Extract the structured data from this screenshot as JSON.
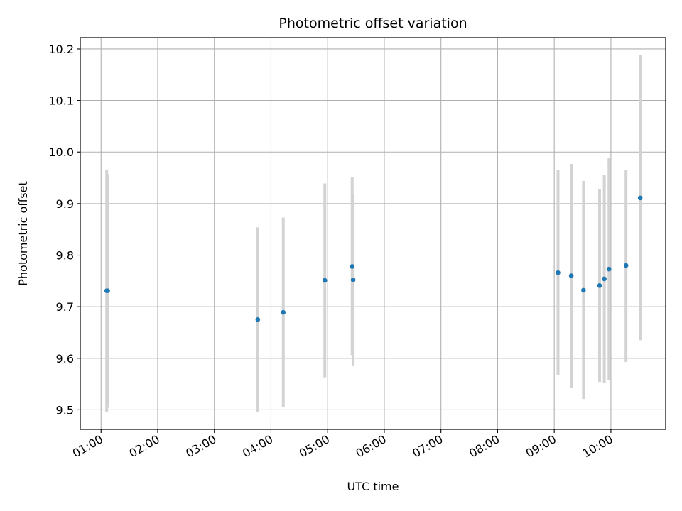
{
  "chart_data": {
    "type": "scatter",
    "title": "Photometric offset variation",
    "xlabel": "UTC time",
    "ylabel": "Photometric offset",
    "x_ticks": [
      "01:00",
      "02:00",
      "03:00",
      "04:00",
      "05:00",
      "06:00",
      "07:00",
      "08:00",
      "09:00",
      "10:00"
    ],
    "y_ticks": [
      "9.5",
      "9.6",
      "9.7",
      "9.8",
      "9.9",
      "10.0",
      "10.1",
      "10.2"
    ],
    "xlim": [
      "00:38",
      "10:58"
    ],
    "ylim": [
      9.462,
      10.222
    ],
    "grid": true,
    "colors": {
      "point": "#1f77b4",
      "errorbar": "#d3d3d3",
      "grid": "#b0b0b0"
    },
    "points": [
      {
        "x": "01:06",
        "y": 9.731,
        "yerr_low": 9.496,
        "yerr_high": 9.966
      },
      {
        "x": "01:07",
        "y": 9.731,
        "yerr_low": 9.504,
        "yerr_high": 9.957
      },
      {
        "x": "03:46",
        "y": 9.675,
        "yerr_low": 9.496,
        "yerr_high": 9.854
      },
      {
        "x": "04:13",
        "y": 9.689,
        "yerr_low": 9.505,
        "yerr_high": 9.873
      },
      {
        "x": "04:57",
        "y": 9.751,
        "yerr_low": 9.563,
        "yerr_high": 9.939
      },
      {
        "x": "05:26",
        "y": 9.778,
        "yerr_low": 9.606,
        "yerr_high": 9.951
      },
      {
        "x": "05:27",
        "y": 9.752,
        "yerr_low": 9.586,
        "yerr_high": 9.918
      },
      {
        "x": "09:04",
        "y": 9.766,
        "yerr_low": 9.567,
        "yerr_high": 9.965
      },
      {
        "x": "09:18",
        "y": 9.76,
        "yerr_low": 9.543,
        "yerr_high": 9.977
      },
      {
        "x": "09:31",
        "y": 9.732,
        "yerr_low": 9.521,
        "yerr_high": 9.944
      },
      {
        "x": "09:48",
        "y": 9.741,
        "yerr_low": 9.554,
        "yerr_high": 9.928
      },
      {
        "x": "09:53",
        "y": 9.754,
        "yerr_low": 9.552,
        "yerr_high": 9.956
      },
      {
        "x": "09:58",
        "y": 9.773,
        "yerr_low": 9.557,
        "yerr_high": 9.989
      },
      {
        "x": "10:16",
        "y": 9.78,
        "yerr_low": 9.593,
        "yerr_high": 9.965
      },
      {
        "x": "10:31",
        "y": 9.911,
        "yerr_low": 9.635,
        "yerr_high": 10.188
      }
    ]
  }
}
